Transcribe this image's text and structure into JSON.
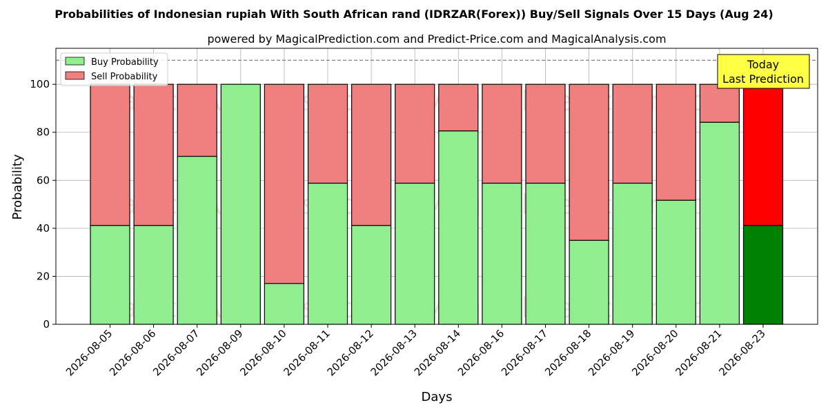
{
  "chart_data": {
    "type": "bar",
    "stacked": true,
    "title": "Probabilities of Indonesian rupiah With South African rand (IDRZAR(Forex)) Buy/Sell Signals Over 15 Days (Aug 24)",
    "subtitle": "powered by MagicalPrediction.com and Predict-Price.com and MagicalAnalysis.com",
    "xlabel": "Days",
    "ylabel": "Probability",
    "ylim": [
      0,
      115
    ],
    "yticks": [
      0,
      20,
      40,
      60,
      80,
      100
    ],
    "reference_line": 110,
    "grid": true,
    "legend_position": "top-left",
    "categories": [
      "2026-08-05",
      "2026-08-06",
      "2026-08-07",
      "2026-08-09",
      "2026-08-10",
      "2026-08-11",
      "2026-08-12",
      "2026-08-13",
      "2026-08-14",
      "2026-08-16",
      "2026-08-17",
      "2026-08-18",
      "2026-08-19",
      "2026-08-20",
      "2026-08-21",
      "2026-08-23"
    ],
    "series": [
      {
        "name": "Buy Probability",
        "color": "#90ee90",
        "highlight_color": "#008000",
        "values": [
          41.2,
          41.2,
          70,
          100,
          17,
          58.8,
          41.2,
          58.8,
          80.6,
          58.8,
          58.8,
          35,
          58.8,
          51.7,
          84.2,
          41.2
        ]
      },
      {
        "name": "Sell Probability",
        "color": "#f08080",
        "highlight_color": "#ff0000",
        "values": [
          58.8,
          58.8,
          30,
          0,
          83,
          41.2,
          58.8,
          41.2,
          19.4,
          41.2,
          41.2,
          65,
          41.2,
          48.3,
          15.8,
          58.8
        ]
      }
    ],
    "highlight_index": 15,
    "annotation": {
      "line1": "Today",
      "line2": "Last Prediction",
      "background": "#ffff44"
    },
    "watermarks": [
      "MagicalAnalysis.com",
      "MagicalPrediction.com"
    ]
  }
}
